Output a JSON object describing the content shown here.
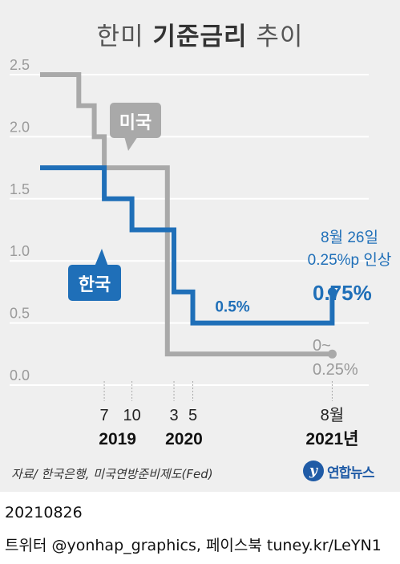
{
  "title": {
    "normal_a": "한미 ",
    "bold": "기준금리",
    "normal_b": " 추이"
  },
  "chart_data": {
    "type": "line",
    "step": true,
    "ylim": [
      0,
      2.5
    ],
    "yticks": [
      "2.5",
      "2.0",
      "1.5",
      "1.0",
      "0.5",
      "0.0"
    ],
    "ytick_values": [
      2.5,
      2.0,
      1.5,
      1.0,
      0.5,
      0.0
    ],
    "grid": true,
    "x_markers": [
      {
        "label": "7",
        "x": 2019.58
      },
      {
        "label": "10",
        "x": 2019.83
      },
      {
        "label": "3",
        "x": 2020.21
      },
      {
        "label": "5",
        "x": 2020.38
      },
      {
        "label": "8월",
        "x": 2021.64
      }
    ],
    "years": [
      {
        "label": "2019",
        "x": 2019.7
      },
      {
        "label": "2020",
        "x": 2020.3
      },
      {
        "label": "2021년",
        "x": 2021.64
      }
    ],
    "series": [
      {
        "name": "미국",
        "color": "#a9a9a9",
        "points": [
          [
            2019.0,
            2.5
          ],
          [
            2019.35,
            2.5
          ],
          [
            2019.35,
            2.25
          ],
          [
            2019.49,
            2.25
          ],
          [
            2019.49,
            2.0
          ],
          [
            2019.58,
            2.0
          ],
          [
            2019.58,
            1.75
          ],
          [
            2020.15,
            1.75
          ],
          [
            2020.15,
            0.25
          ],
          [
            2021.64,
            0.25
          ]
        ],
        "end_label": [
          "0~",
          "0.25%"
        ]
      },
      {
        "name": "한국",
        "color": "#1f6fb8",
        "points": [
          [
            2019.0,
            1.75
          ],
          [
            2019.58,
            1.75
          ],
          [
            2019.58,
            1.5
          ],
          [
            2019.83,
            1.5
          ],
          [
            2019.83,
            1.25
          ],
          [
            2020.21,
            1.25
          ],
          [
            2020.21,
            0.75
          ],
          [
            2020.38,
            0.75
          ],
          [
            2020.38,
            0.5
          ],
          [
            2021.64,
            0.5
          ],
          [
            2021.64,
            0.75
          ]
        ],
        "mid_label": "0.5%",
        "end_label": "0.75%"
      }
    ],
    "annotation": [
      "8월 26일",
      "0.25%p 인상"
    ]
  },
  "source": "자료/ 한국은행, 미국연방준비제도(Fed)",
  "logo": {
    "mark": "y",
    "text": "연합뉴스"
  },
  "date": "20210826",
  "social": "트위터 @yonhap_graphics, 페이스북 tuney.kr/LeYN1"
}
